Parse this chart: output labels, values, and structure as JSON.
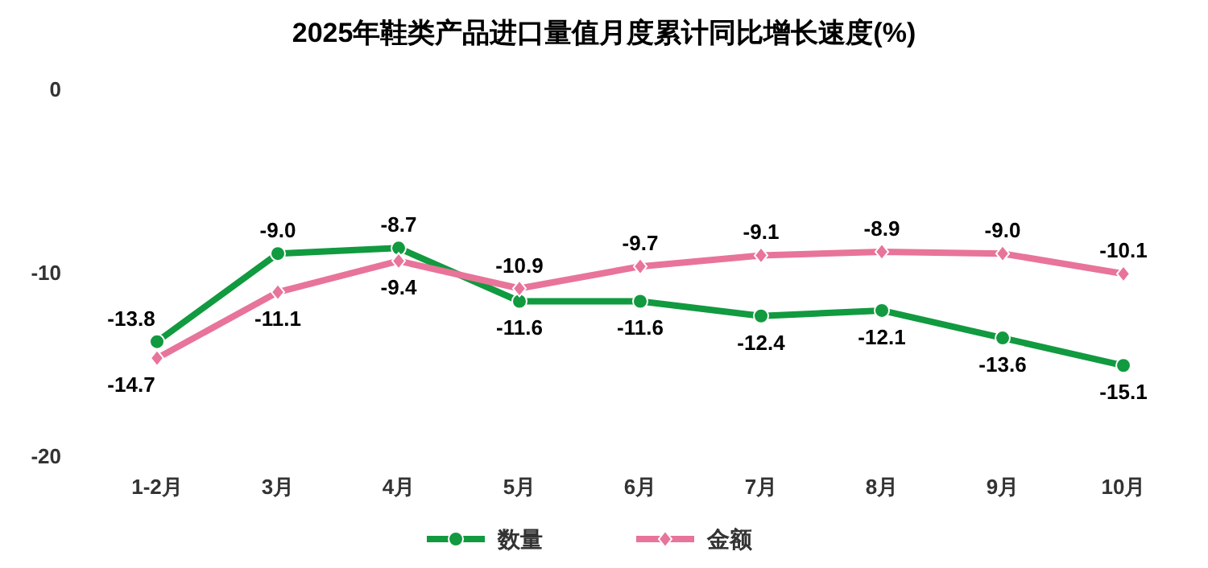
{
  "chart_data": {
    "type": "line",
    "title": "2025年鞋类产品进口量值月度累计同比增长速度(%)",
    "categories": [
      "1-2月",
      "3月",
      "4月",
      "5月",
      "6月",
      "7月",
      "8月",
      "9月",
      "10月"
    ],
    "series": [
      {
        "name": "数量",
        "color": "#119a3f",
        "marker": "circle",
        "values": [
          -13.8,
          -9.0,
          -8.7,
          -11.6,
          -11.6,
          -12.4,
          -12.1,
          -13.6,
          -15.1
        ],
        "value_labels": [
          "-13.8",
          "-9.0",
          "-8.7",
          "-11.6",
          "-11.6",
          "-12.4",
          "-12.1",
          "-13.6",
          "-15.1"
        ]
      },
      {
        "name": "金额",
        "color": "#e8749a",
        "marker": "diamond",
        "values": [
          -14.7,
          -11.1,
          -9.4,
          -10.9,
          -9.7,
          -9.1,
          -8.9,
          -9.0,
          -10.1
        ],
        "value_labels": [
          "-14.7",
          "-11.1",
          "-9.4",
          "-10.9",
          "-9.7",
          "-9.1",
          "-8.9",
          "-9.0",
          "-10.1"
        ]
      }
    ],
    "ylim": [
      -20,
      0
    ],
    "yticks": [
      0,
      -10,
      -20
    ],
    "legend": "bottom"
  }
}
